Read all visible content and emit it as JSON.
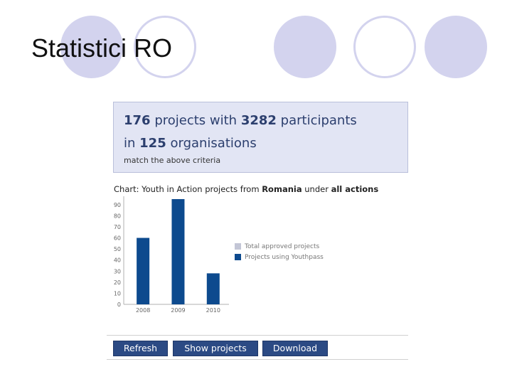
{
  "slide": {
    "title": "Statistici RO"
  },
  "summary": {
    "projects_count": "176",
    "projects_text": "projects with",
    "participants_count": "3282",
    "participants_text": "participants",
    "in_text": "in",
    "organisations_count": "125",
    "organisations_text": "organisations",
    "note": "match the above criteria"
  },
  "chart_heading": {
    "prefix": "Chart: Youth in Action projects from",
    "country": "Romania",
    "middle": "under",
    "actions": "all actions"
  },
  "chart_data": {
    "type": "bar",
    "categories": [
      "2008",
      "2009",
      "2010"
    ],
    "series": [
      {
        "name": "Total approved projects",
        "values": [
          0,
          0,
          0
        ]
      },
      {
        "name": "Projects using Youthpass",
        "values": [
          60,
          95,
          28
        ]
      }
    ],
    "ylim": [
      0,
      95
    ],
    "yticks": [
      0,
      10,
      20,
      30,
      40,
      50,
      60,
      70,
      80,
      90
    ],
    "legend_position": "right",
    "colors": {
      "Total approved projects": "#c3c6d6",
      "Projects using Youthpass": "#0d4a8e"
    }
  },
  "toolbar": {
    "refresh_label": "Refresh",
    "show_projects_label": "Show projects",
    "download_label": "Download"
  }
}
